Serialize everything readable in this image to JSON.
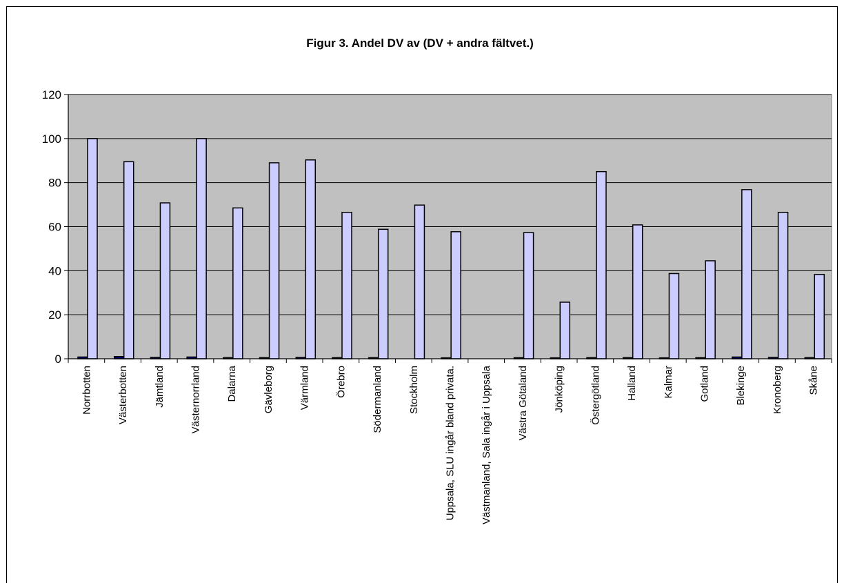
{
  "chart_data": {
    "type": "bar",
    "title": "Figur 3. Andel DV av (DV + andra fältvet.)",
    "xlabel": "",
    "ylabel": "",
    "ylim": [
      0,
      120
    ],
    "yticks": [
      0,
      20,
      40,
      60,
      80,
      100,
      120
    ],
    "grid": true,
    "legend": "none",
    "categories": [
      "Norrbotten",
      "Västerbotten",
      "Jämtland",
      "Västernorrland",
      "Dalarna",
      "Gävleborg",
      "Värmland",
      "Örebro",
      "Södermanland",
      "Stockholm",
      "Uppsala, SLU ingår bland privata.",
      "Västmanland, Sala ingår i Uppsala",
      "Västra Götaland",
      "Jönköping",
      "Östergötland",
      "Halland",
      "Kalmar",
      "Gotland",
      "Blekinge",
      "Kronoberg",
      "Skåne"
    ],
    "series": [
      {
        "values": [
          0.8,
          1.0,
          0.6,
          0.8,
          0.5,
          0.5,
          0.6,
          0.5,
          0.5,
          null,
          0.4,
          null,
          0.5,
          0.4,
          0.5,
          0.5,
          0.4,
          0.5,
          0.8,
          0.6,
          0.5
        ]
      },
      {
        "values": [
          100,
          89.5,
          70.8,
          100,
          68.5,
          89,
          90.3,
          66.5,
          58.8,
          69.8,
          57.7,
          null,
          57.3,
          25.7,
          85,
          60.8,
          38.7,
          44.5,
          76.8,
          66.5,
          38.3
        ]
      }
    ],
    "colors": {
      "plot_bg": "#c0c0c0",
      "series_1": "#000080",
      "series_2": "#ccccff",
      "grid": "#000000"
    }
  }
}
